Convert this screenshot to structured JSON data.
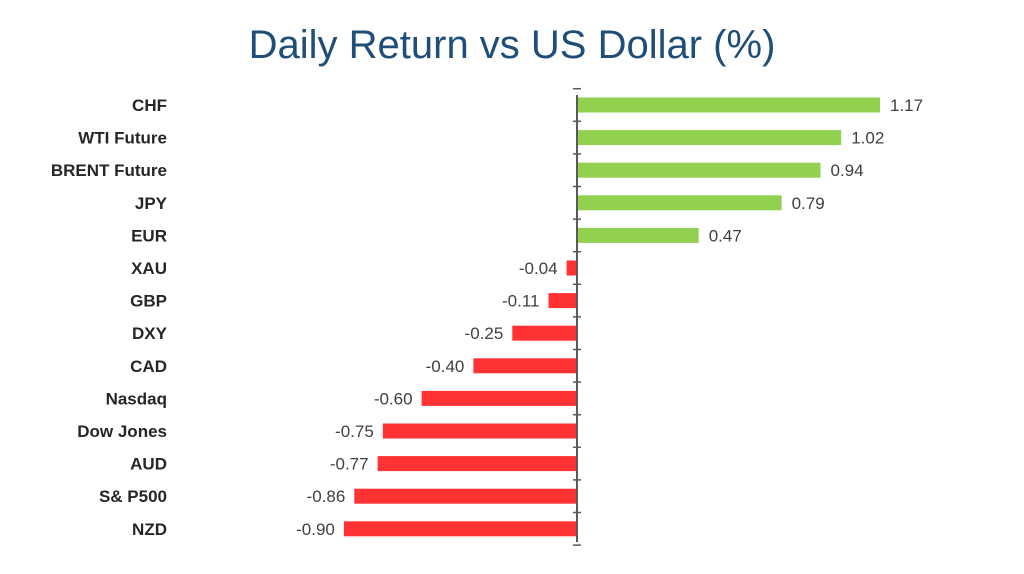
{
  "chart_data": {
    "type": "bar",
    "orientation": "horizontal",
    "title": "Daily Return vs US Dollar (%)",
    "xlabel": "",
    "ylabel": "",
    "xlim": [
      -0.9,
      1.17
    ],
    "grid": false,
    "legend": "none",
    "categories": [
      "CHF",
      "WTI Future",
      "BRENT Future",
      "JPY",
      "EUR",
      "XAU",
      "GBP",
      "DXY",
      "CAD",
      "Nasdaq",
      "Dow Jones",
      "AUD",
      "S& P500",
      "NZD"
    ],
    "values": [
      1.17,
      1.02,
      0.94,
      0.79,
      0.47,
      -0.04,
      -0.11,
      -0.25,
      -0.4,
      -0.6,
      -0.75,
      -0.77,
      -0.86,
      -0.9
    ],
    "value_labels": [
      "1.17",
      "1.02",
      "0.94",
      "0.79",
      "0.47",
      "-0.04",
      "-0.11",
      "-0.25",
      "-0.40",
      "-0.60",
      "-0.75",
      "-0.77",
      "-0.86",
      "-0.90"
    ],
    "colors": {
      "positive": "#92d050",
      "negative": "#ff3333",
      "axis": "#595959",
      "title": "#1f4e79"
    }
  }
}
